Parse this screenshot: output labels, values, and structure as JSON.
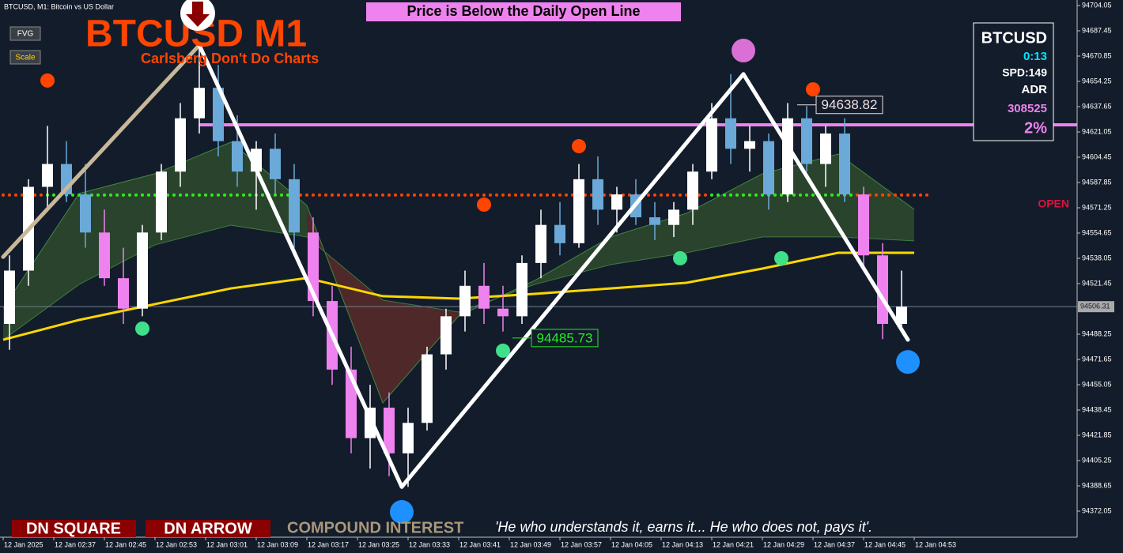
{
  "header": {
    "symbol": "BTCUSD, M1:  Bitcoin vs US Dollar",
    "buttons": [
      "FVG",
      "Scale"
    ],
    "title": "BTCUSD M1",
    "subtitle": "Carlsberg Don't Do Charts",
    "banner": "Price is Below the Daily Open Line"
  },
  "info_panel": {
    "symbol": "BTCUSD",
    "timer": "0:13",
    "spread": "SPD:149",
    "adr_label": "ADR",
    "adr_value": "308525",
    "percent": "2%"
  },
  "footer": {
    "buttons": [
      "DN SQUARE",
      "DN ARROW"
    ],
    "compound": "COMPOUND INTEREST",
    "quote": "'He who understands it, earns it... He who does not, pays it'."
  },
  "chart_data": {
    "type": "candlestick",
    "ylim": [
      94372.05,
      94704.05
    ],
    "yticks": [
      94704.05,
      94687.45,
      94670.85,
      94654.25,
      94637.65,
      94621.05,
      94604.45,
      94587.85,
      94571.25,
      94554.65,
      94538.05,
      94521.45,
      94488.25,
      94471.65,
      94455.05,
      94438.45,
      94421.85,
      94405.25,
      94388.65,
      94372.05
    ],
    "time_labels": [
      "12 Jan 2025",
      "12 Jan 02:37",
      "12 Jan 02:45",
      "12 Jan 02:53",
      "12 Jan 03:01",
      "12 Jan 03:09",
      "12 Jan 03:17",
      "12 Jan 03:25",
      "12 Jan 03:33",
      "12 Jan 03:41",
      "12 Jan 03:49",
      "12 Jan 03:57",
      "12 Jan 04:05",
      "12 Jan 04:13",
      "12 Jan 04:21",
      "12 Jan 04:29",
      "12 Jan 04:37",
      "12 Jan 04:45",
      "12 Jan 04:53"
    ],
    "bull_color": "#ffffff",
    "bear_color": "#6aa9d8",
    "bear_below_color": "#ee82ee",
    "candles": [
      [
        94495,
        94540,
        94478,
        94530
      ],
      [
        94530,
        94590,
        94520,
        94585
      ],
      [
        94585,
        94625,
        94570,
        94600
      ],
      [
        94600,
        94615,
        94575,
        94580
      ],
      [
        94580,
        94600,
        94545,
        94555
      ],
      [
        94555,
        94570,
        94520,
        94525
      ],
      [
        94525,
        94545,
        94495,
        94505
      ],
      [
        94505,
        94560,
        94500,
        94555
      ],
      [
        94555,
        94600,
        94550,
        94595
      ],
      [
        94595,
        94640,
        94585,
        94630
      ],
      [
        94630,
        94678,
        94620,
        94650
      ],
      [
        94650,
        94665,
        94605,
        94615
      ],
      [
        94615,
        94632,
        94585,
        94595
      ],
      [
        94595,
        94615,
        94570,
        94610
      ],
      [
        94610,
        94620,
        94580,
        94590
      ],
      [
        94590,
        94600,
        94545,
        94555
      ],
      [
        94555,
        94565,
        94500,
        94510
      ],
      [
        94510,
        94520,
        94455,
        94465
      ],
      [
        94465,
        94480,
        94410,
        94420
      ],
      [
        94420,
        94455,
        94400,
        94440
      ],
      [
        94440,
        94450,
        94395,
        94410
      ],
      [
        94410,
        94440,
        94388,
        94430
      ],
      [
        94430,
        94480,
        94425,
        94475
      ],
      [
        94475,
        94505,
        94465,
        94500
      ],
      [
        94500,
        94530,
        94490,
        94520
      ],
      [
        94520,
        94535,
        94495,
        94505
      ],
      [
        94505,
        94520,
        94490,
        94500
      ],
      [
        94500,
        94540,
        94495,
        94535
      ],
      [
        94535,
        94570,
        94525,
        94560
      ],
      [
        94560,
        94575,
        94540,
        94548
      ],
      [
        94548,
        94600,
        94545,
        94590
      ],
      [
        94590,
        94605,
        94560,
        94570
      ],
      [
        94570,
        94585,
        94555,
        94580
      ],
      [
        94580,
        94590,
        94560,
        94565
      ],
      [
        94565,
        94575,
        94550,
        94560
      ],
      [
        94560,
        94575,
        94552,
        94570
      ],
      [
        94570,
        94600,
        94560,
        94595
      ],
      [
        94595,
        94640,
        94590,
        94630
      ],
      [
        94630,
        94659,
        94600,
        94610
      ],
      [
        94610,
        94625,
        94595,
        94615
      ],
      [
        94615,
        94620,
        94570,
        94580
      ],
      [
        94580,
        94640,
        94575,
        94630
      ],
      [
        94630,
        94638,
        94595,
        94600
      ],
      [
        94600,
        94625,
        94585,
        94620
      ],
      [
        94620,
        94630,
        94575,
        94580
      ],
      [
        94580,
        94585,
        94530,
        94540
      ],
      [
        94540,
        94548,
        94485,
        94495
      ],
      [
        94495,
        94530,
        94490,
        94506.31
      ]
    ],
    "ma_x": [
      0,
      12,
      24,
      36,
      48,
      60,
      72,
      84,
      96,
      108,
      120,
      132,
      144
    ],
    "cloud_fast": [
      94505.4,
      94580.6,
      94593.6,
      94614.3,
      94572.8,
      94443.1,
      94500.2,
      94523.5,
      94552.1,
      94567.6,
      94593.6,
      94606.5,
      94570.2
    ],
    "cloud_slow": [
      94484.6,
      94520.9,
      94546.9,
      94559.8,
      94552.1,
      94510.6,
      94502.8,
      94520.9,
      94533.9,
      94541.7,
      94552.1,
      94552.1,
      94549.5
    ],
    "ma": [
      94484.6,
      94497.6,
      94508.0,
      94518.3,
      94525.1,
      94513.2,
      94511.6,
      94514.7,
      94518.3,
      94522.0,
      94531.3,
      94541.7,
      94541.7
    ],
    "ma_color": "#ffd700",
    "cloud_up_color": "#2e4a2e",
    "cloud_down_color": "#5a2a2a",
    "fast_color": "#3f8a3f",
    "slow_color": "#3f7a3f",
    "zigzag": {
      "x": [
        0,
        31,
        63,
        117,
        143
      ],
      "values": [
        94539,
        94678,
        94388,
        94659,
        94484.6
      ],
      "color": "#ffffff",
      "first_color": "#c8b89a"
    },
    "daily_high": {
      "value": 94625.7,
      "color": "#ee82ee"
    },
    "open_line": {
      "value": 94579.6,
      "label": "OPEN",
      "color": "#ff4500",
      "label_color": "#dc143c",
      "highlight_color": "#22ee22",
      "highlight_ranges": [
        [
          7,
          47
        ],
        [
          112,
          135
        ]
      ]
    },
    "current_price": 94506.31,
    "levels": [
      {
        "x": 128,
        "value": 94638.82,
        "color": "#f0e0e0"
      },
      {
        "x": 83,
        "value": 94485.73,
        "color": "#22ee22"
      }
    ],
    "dots": [
      {
        "x": 7,
        "value": 94654.8,
        "color": "#ff4500",
        "r": 9
      },
      {
        "x": 76,
        "value": 94573.3,
        "color": "#ff4500",
        "r": 9
      },
      {
        "x": 91,
        "value": 94611.7,
        "color": "#ff4500",
        "r": 9
      },
      {
        "x": 128,
        "value": 94649.0,
        "color": "#ff4500",
        "r": 9
      },
      {
        "x": 22,
        "value": 94491.9,
        "color": "#3ee08a",
        "r": 9
      },
      {
        "x": 79,
        "value": 94477.4,
        "color": "#3ee08a",
        "r": 9
      },
      {
        "x": 107,
        "value": 94538.1,
        "color": "#3ee08a",
        "r": 9
      },
      {
        "x": 123,
        "value": 94538.1,
        "color": "#3ee08a",
        "r": 9
      },
      {
        "x": 63,
        "value": 94371.5,
        "color": "#1e90ff",
        "r": 15
      },
      {
        "x": 143,
        "value": 94470.0,
        "color": "#1e90ff",
        "r": 15
      },
      {
        "x": 117,
        "value": 94674.5,
        "color": "#da70d6",
        "r": 15
      }
    ]
  }
}
